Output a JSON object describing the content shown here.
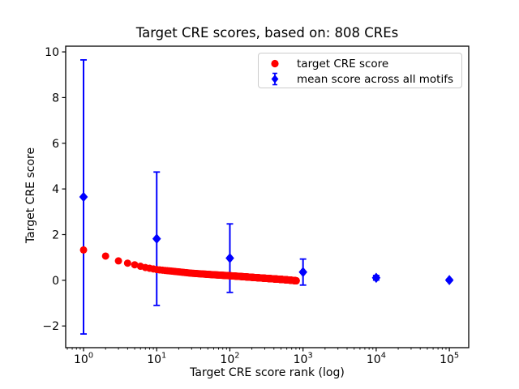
{
  "chart_data": {
    "type": "scatter",
    "title": "Target CRE scores, based on: 808 CREs",
    "xlabel": "Target CRE score rank (log)",
    "ylabel": "Target CRE score",
    "x_scale": "log",
    "xlim": [
      0.57,
      184000
    ],
    "ylim": [
      -2.95,
      10.25
    ],
    "x_major_ticks": [
      1,
      10,
      100,
      1000,
      10000,
      100000
    ],
    "x_tick_base": "10",
    "x_tick_exponents": [
      "0",
      "1",
      "2",
      "3",
      "4",
      "5"
    ],
    "y_ticks": [
      -2,
      0,
      2,
      4,
      6,
      8,
      10
    ],
    "y_tick_labels": [
      "−2",
      "0",
      "2",
      "4",
      "6",
      "8",
      "10"
    ],
    "grid": false,
    "legend_position": "upper right",
    "series": [
      {
        "name": "target CRE score",
        "type": "scatter",
        "marker": "circle",
        "color": "#ff0000",
        "n_points": 808,
        "interpolation": "log-linear",
        "anchors": {
          "rank": [
            1,
            2,
            3,
            4,
            5,
            7,
            10,
            15,
            20,
            30,
            50,
            70,
            100,
            150,
            200,
            300,
            500,
            650,
            808
          ],
          "score": [
            1.33,
            1.06,
            0.85,
            0.75,
            0.68,
            0.56,
            0.47,
            0.41,
            0.37,
            0.31,
            0.26,
            0.23,
            0.2,
            0.16,
            0.13,
            0.09,
            0.04,
            0.01,
            -0.02
          ]
        }
      },
      {
        "name": "mean score across all motifs",
        "type": "errorbar",
        "marker": "diamond",
        "color": "#0000ff",
        "x": [
          1,
          10,
          100,
          1000,
          10000,
          100000
        ],
        "y": [
          3.65,
          1.82,
          0.97,
          0.36,
          0.11,
          0.01
        ],
        "yerr": [
          6.0,
          2.92,
          1.5,
          0.57,
          0.1,
          0.04
        ]
      }
    ]
  }
}
